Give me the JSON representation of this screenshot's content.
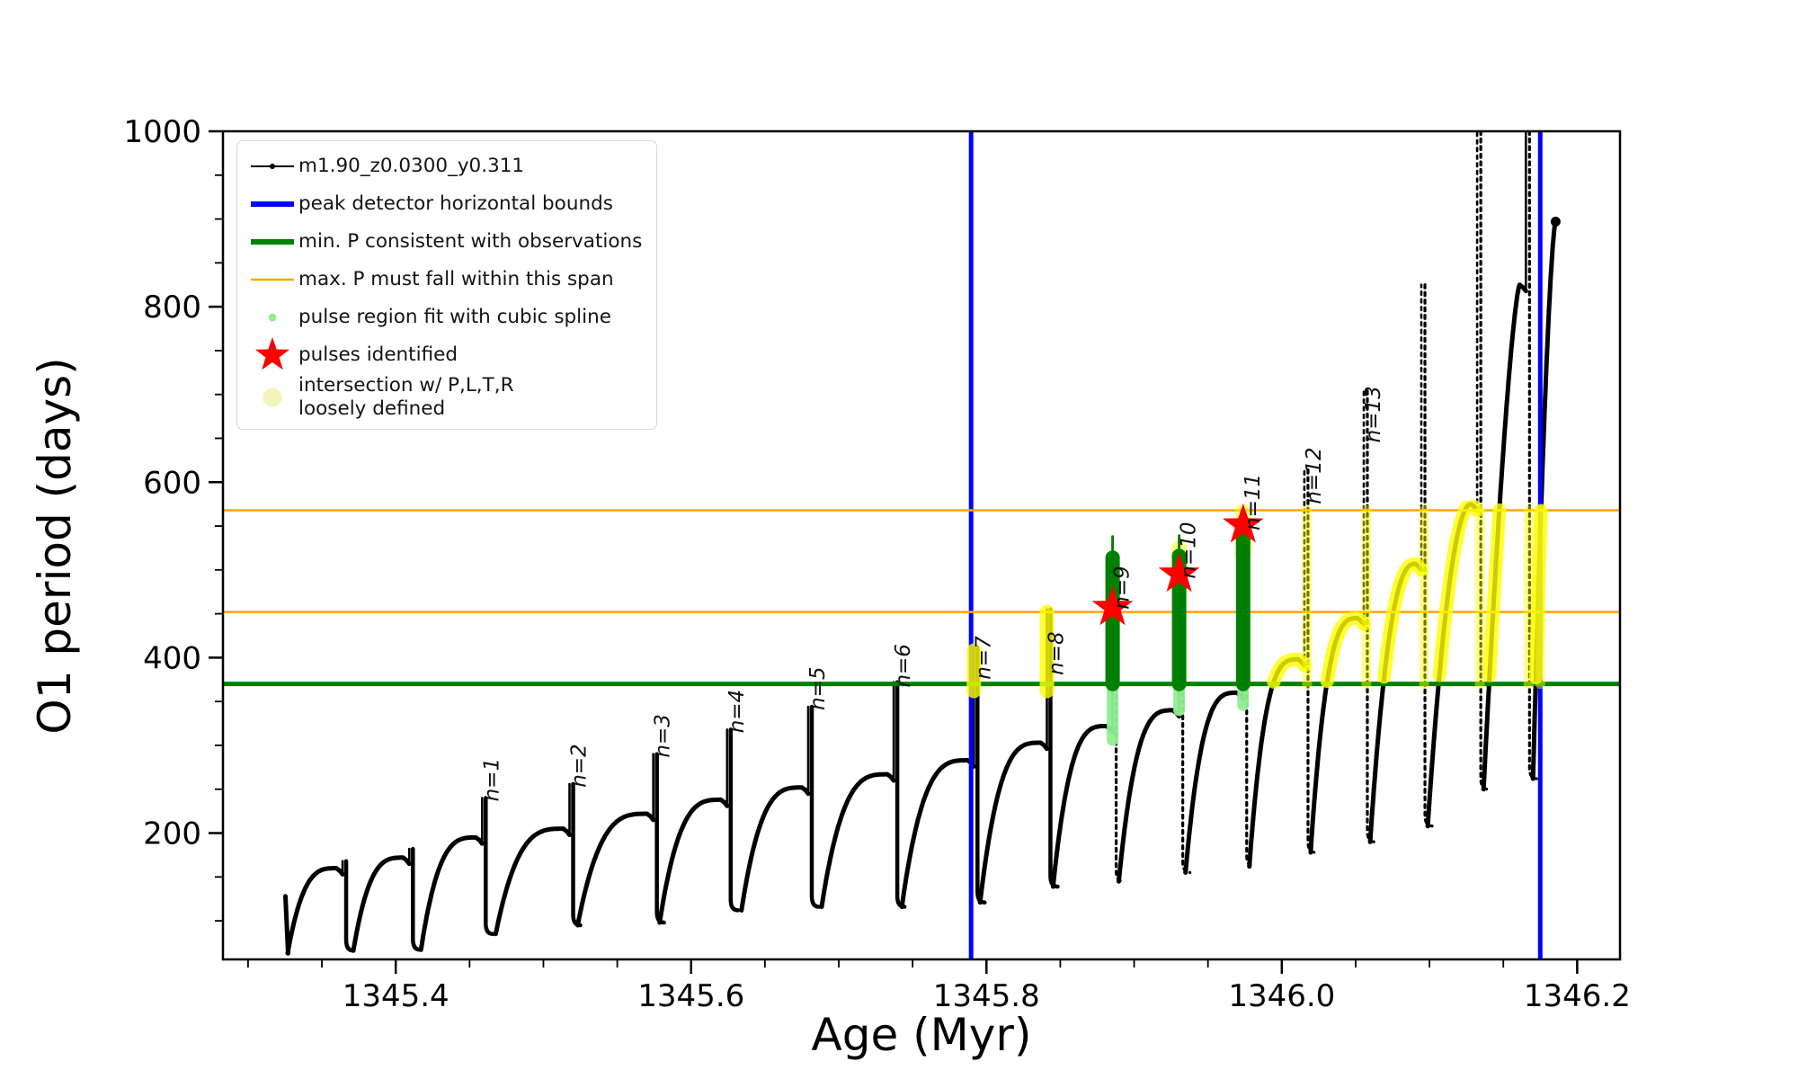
{
  "figure": {
    "background": "#ffffff",
    "frame_color": "#000000"
  },
  "legend": {
    "entries": [
      {
        "marker": "line-dot",
        "color": "#000000",
        "label": "m1.90_z0.0300_y0.311"
      },
      {
        "marker": "thick-line",
        "color": "#0000ff",
        "label": "peak detector horizontal bounds"
      },
      {
        "marker": "thick-line",
        "color": "#008000",
        "label": "min. P consistent with observations"
      },
      {
        "marker": "thin-line",
        "color": "#ffa500",
        "label": "max. P must fall within this span"
      },
      {
        "marker": "small-dot",
        "color": "#90ee90",
        "label": "pulse region fit with cubic spline"
      },
      {
        "marker": "star",
        "color": "#ff0000",
        "label": "pulses identified"
      },
      {
        "marker": "big-dot",
        "color": "#f0f0a0",
        "label": "intersection w/ P,L,T,R\nloosely defined"
      }
    ]
  },
  "chart_data": {
    "type": "line",
    "series_name": "m1.90_z0.0300_y0.311",
    "xlabel": "Age (Myr)",
    "ylabel": "O1 period (days)",
    "xlim": [
      1345.283,
      1346.229
    ],
    "ylim": [
      56,
      1000
    ],
    "x_ticks": [
      {
        "v": 1345.4,
        "label": "1345.4"
      },
      {
        "v": 1345.6,
        "label": "1345.6"
      },
      {
        "v": 1345.8,
        "label": "1345.8"
      },
      {
        "v": 1346.0,
        "label": "1346.0"
      },
      {
        "v": 1346.2,
        "label": "1346.2"
      }
    ],
    "x_minor_ticks": [
      1345.3,
      1345.35,
      1345.45,
      1345.5,
      1345.55,
      1345.65,
      1345.7,
      1345.75,
      1345.85,
      1345.9,
      1345.95,
      1346.05,
      1346.1,
      1346.15
    ],
    "y_ticks": [
      {
        "v": 200,
        "label": "200"
      },
      {
        "v": 400,
        "label": "400"
      },
      {
        "v": 600,
        "label": "600"
      },
      {
        "v": 800,
        "label": "800"
      },
      {
        "v": 1000,
        "label": "1000"
      }
    ],
    "y_minor_ticks": [
      100,
      150,
      250,
      300,
      350,
      450,
      500,
      550,
      650,
      700,
      750,
      850,
      900,
      950
    ],
    "hlines": {
      "min_P_consistent": 370,
      "max_P_span": [
        452,
        568
      ],
      "min_color": "#008000",
      "span_color": "#ffa500"
    },
    "vlines": {
      "peak_detector_bounds": [
        1345.7896,
        1346.175
      ],
      "color": "#0000ff"
    },
    "series_color": "#000000",
    "teeth": [
      {
        "s": [
          1345.3268,
          63
        ],
        "c": [
          1345.3646,
          160
        ],
        "spike": 168,
        "exp": 3.2
      },
      {
        "s": [
          1345.3713,
          66
        ],
        "c": [
          1345.4098,
          172
        ],
        "spike": 182,
        "exp": 3.2
      },
      {
        "s": [
          1345.4171,
          67
        ],
        "c": [
          1345.4591,
          195
        ],
        "spike": 240,
        "exp": 3.2,
        "pulse": "n=1",
        "label_P": 236
      },
      {
        "s": [
          1345.4677,
          85
        ],
        "c": [
          1345.5183,
          205
        ],
        "spike": 256,
        "exp": 3.2,
        "pulse": "n=2",
        "label_P": 252
      },
      {
        "s": [
          1345.5232,
          95
        ],
        "c": [
          1345.575,
          222
        ],
        "spike": 290,
        "exp": 3.2,
        "pulse": "n=3",
        "label_P": 286
      },
      {
        "s": [
          1345.5787,
          98
        ],
        "c": [
          1345.625,
          238
        ],
        "spike": 318,
        "exp": 3.2,
        "pulse": "n=4",
        "label_P": 314
      },
      {
        "s": [
          1345.6341,
          112
        ],
        "c": [
          1345.6799,
          252
        ],
        "spike": 344,
        "exp": 3.2,
        "pulse": "n=5",
        "label_P": 340
      },
      {
        "s": [
          1345.6884,
          116
        ],
        "c": [
          1345.7378,
          267
        ],
        "spike": 372,
        "exp": 3.2,
        "pulse": "n=6",
        "label_P": 366
      },
      {
        "s": [
          1345.7427,
          116
        ],
        "c": [
          1345.7921,
          283
        ],
        "spike": 412,
        "exp": 3.2,
        "pulse": "n=7",
        "label_P": 375
      },
      {
        "s": [
          1345.7957,
          121
        ],
        "c": [
          1345.8415,
          303
        ],
        "spike": 455,
        "exp": 3.2,
        "pulse": "n=8",
        "label_P": 380
      },
      {
        "s": [
          1345.8451,
          139
        ],
        "c": [
          1345.886,
          322
        ],
        "spike": 505,
        "exp": 3.2,
        "pulse": "n=9",
        "label_P": 455
      },
      {
        "s": [
          1345.8896,
          145
        ],
        "c": [
          1345.9311,
          340
        ],
        "spike": 508,
        "exp": 3.2,
        "pulse": "n=10",
        "label_P": 490
      },
      {
        "s": [
          1345.9348,
          155
        ],
        "c": [
          1345.9744,
          360
        ],
        "spike": 540,
        "exp": 3.2,
        "pulse": "n=11",
        "label_P": 545
      },
      {
        "s": [
          1345.978,
          162
        ],
        "c": [
          1346.0159,
          398
        ],
        "spike": 614,
        "exp": 3.2,
        "pulse": "n=12",
        "label_P": 575
      },
      {
        "s": [
          1346.0195,
          178
        ],
        "c": [
          1346.0561,
          445
        ],
        "spike": 704,
        "exp": 3.0,
        "pulse": "n=13",
        "label_P": 645
      },
      {
        "s": [
          1346.0598,
          190
        ],
        "c": [
          1346.0951,
          507
        ],
        "spike": 825,
        "exp": 2.4
      },
      {
        "s": [
          1346.0988,
          208
        ],
        "c": [
          1346.1329,
          575
        ],
        "spike": 1000,
        "exp": 2.0
      },
      {
        "s": [
          1346.1366,
          250
        ],
        "c": [
          1346.1659,
          825
        ],
        "spike": 1000,
        "exp": 1.4
      },
      {
        "s": [
          1346.1701,
          262
        ],
        "c": [
          1346.1854,
          897
        ],
        "spike": null,
        "exp": 1.5,
        "end": true
      }
    ],
    "green_bars": [
      {
        "age": 1345.886,
        "from": 370,
        "to": 514,
        "tip": 538
      },
      {
        "age": 1345.9311,
        "from": 370,
        "to": 516,
        "tip": 539
      },
      {
        "age": 1345.9744,
        "from": 370,
        "to": 547,
        "tip": 566
      }
    ],
    "pale_green_segments": [
      {
        "age": 1345.886,
        "from": 306,
        "to": 363
      },
      {
        "age": 1345.9311,
        "from": 340,
        "to": 363
      },
      {
        "age": 1345.9744,
        "from": 346,
        "to": 360
      }
    ],
    "stars": [
      {
        "age": 1345.886,
        "P": 457
      },
      {
        "age": 1345.9311,
        "P": 495
      },
      {
        "age": 1345.9744,
        "P": 551
      }
    ],
    "yellow": {
      "band": [
        370,
        568
      ],
      "caps": [
        {
          "age": 1345.7921,
          "from": 362,
          "to": 408
        },
        {
          "age": 1345.8415,
          "from": 362,
          "to": 452
        }
      ],
      "columns": [
        1346.0159,
        1346.0561,
        1346.0951,
        1346.1329,
        1346.1659,
        1346.1738
      ],
      "glows": [
        {
          "age": 1345.9311,
          "from": 492,
          "to": 524
        },
        {
          "age": 1345.9744,
          "from": 518,
          "to": 566
        }
      ],
      "arc_teeth": [
        13,
        14,
        15,
        16,
        17,
        18
      ]
    },
    "colors": {
      "yellow": "#ffff00",
      "pale_green": "#90ee90",
      "dark_green": "#008000",
      "star_red": "#ff0000"
    }
  }
}
